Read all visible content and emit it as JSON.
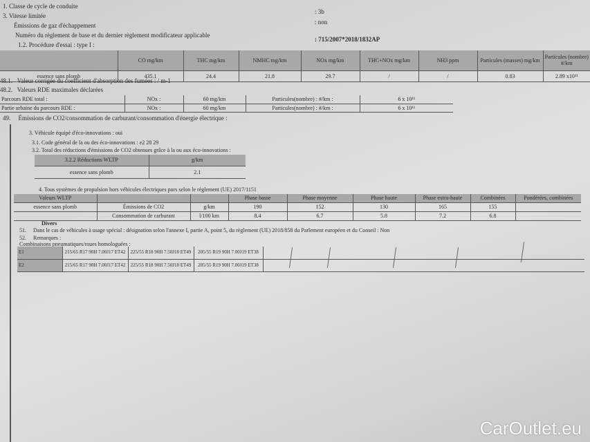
{
  "header_lines": [
    {
      "num": "1.",
      "text": "Classe de cycle de conduite"
    },
    {
      "num": "3.",
      "text": "Vitesse limitée"
    },
    {
      "num": "",
      "text": "Émissions de gaz d'échappement"
    },
    {
      "num": "",
      "text": "Numéro du règlement de base et du dernier règlement modificateur applicable"
    },
    {
      "num": "",
      "text": "1.2. Procédure d'essai : type I :"
    }
  ],
  "values": {
    "class": ": 3b",
    "speed": ": non",
    "regulation": ": 715/2007*2018/1832AP"
  },
  "emissions_table": {
    "headers": [
      "",
      "CO mg/km",
      "THC mg/km",
      "NMHC mg/km",
      "NOx mg/km",
      "THC+NOx mg/km",
      "NH3 ppm",
      "Particules (masses) mg/km",
      "Particules (nombre) #/km"
    ],
    "row": [
      "essence sans plomb",
      "435.1",
      "24.4",
      "21.8",
      "29.7",
      "/",
      "/",
      "0.83",
      "2.89 x10¹¹"
    ]
  },
  "item_48_1": {
    "num": "48.1.",
    "text": "Valeur corrigée du coefficient d'absorption des fumées : / m-1"
  },
  "item_48_2": {
    "num": "48.2.",
    "text": "Valeurs RDE maximales déclarées"
  },
  "rde_table": [
    [
      "Parcours RDE total :",
      "NOx :",
      "60 mg/km",
      "Particules(nombre) : #/km :",
      "6 x 10¹¹"
    ],
    [
      "Partie urbaine du parcours RDE   :",
      "NOx :",
      "60 mg/km",
      "Particules(nombre) : #/km :",
      "6 x 10¹¹"
    ]
  ],
  "item_49": {
    "num": "49.",
    "text": "Émissions de CO2/consommation de carburant/consommation d'énergie électrique :"
  },
  "eco": {
    "l3": "3. Véhicule équipé d'éco-innovations : oui",
    "l31": "3.1. Code général de la ou des éco-innovations : e2 28 29",
    "l32": "3.2. Total des réductions d'émissions de CO2 obtenues grâce à la ou aux éco-innovations :",
    "table": [
      [
        "3.2.2 Réductions WLTP",
        "g/km"
      ],
      [
        "essence sans plomb",
        "2.1"
      ]
    ]
  },
  "wltp": {
    "title": "4. Tous systèmes de propulsion hors véhicules électriques purs selon le règlement (UE) 2017/1151",
    "rows": [
      [
        "Valeurs WLTP",
        "",
        "",
        "Phase basse",
        "Phase moyenne",
        "Phase haute",
        "Phase extra-haute",
        "Combinées",
        "Pondérées, combinées"
      ],
      [
        "essence sans plomb",
        "Émissions de CO2",
        "g/km",
        "190",
        "152",
        "130",
        "165",
        "155",
        ""
      ],
      [
        "",
        "Consommation de carburant",
        "l/100 km",
        "8.4",
        "6.7",
        "5.8",
        "7.2",
        "6.8",
        ""
      ]
    ]
  },
  "divers": {
    "title": "Divers",
    "i51": {
      "num": "51.",
      "text": "Dans le cas de véhicules à usage spécial : désignation selon l'annexe I, partie A, point 5, du règlement (UE) 2018/858 du Parlement européen et du Conseil : Non"
    },
    "i52": {
      "num": "52.",
      "text": "Remarques :"
    },
    "tyres_title": "Combinaisons pneumatiques/roues homologuées :",
    "tyres": [
      [
        "E1",
        "215/65 R17 90H 7.00J17 ET42",
        "225/55 R18 90H 7.50J18 ET49",
        "205/55 R19 90H 7.00J19 ET38"
      ],
      [
        "E2",
        "215/65 R17 90H 7.00J17 ET42",
        "225/55 R18 90H 7.50J18 ET49",
        "205/55 R19 90H 7.00J19 ET38"
      ]
    ]
  },
  "watermark": "CarOutlet.eu"
}
